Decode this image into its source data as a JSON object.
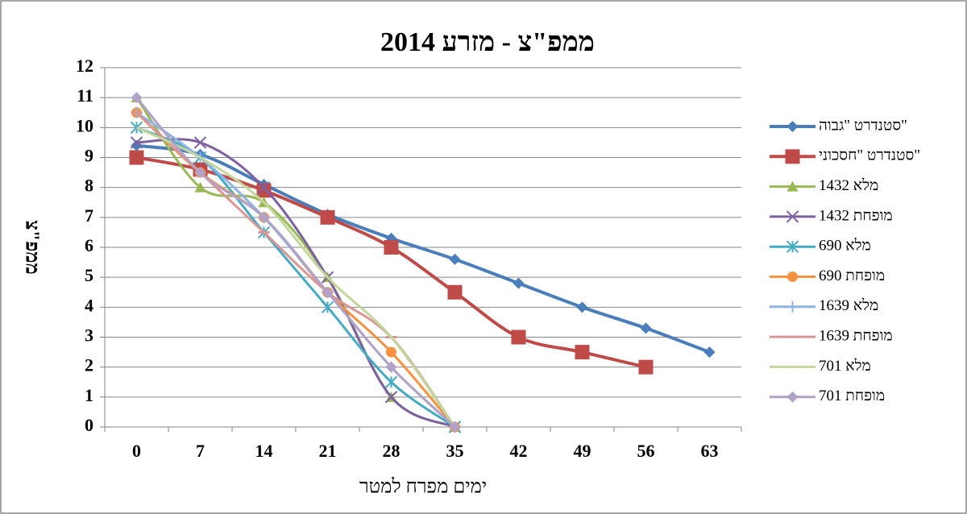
{
  "chart_data": {
    "type": "line",
    "smooth": true,
    "title": "ממפ\"צ - מזרע 2014",
    "x_label": "ימים מפרח למטר",
    "y_label": "ממפ\"צ",
    "categories": [
      "0",
      "7",
      "14",
      "21",
      "28",
      "35",
      "42",
      "49",
      "56",
      "63"
    ],
    "ylim": [
      0,
      12
    ],
    "yticks": [
      0,
      1,
      2,
      3,
      4,
      5,
      6,
      7,
      8,
      9,
      10,
      11,
      12
    ],
    "grid": true,
    "legend": "right",
    "series": [
      {
        "name": "סטנדרט \"גבוה\"",
        "color": "#4a7ebb",
        "marker": "diamond",
        "values": [
          9.4,
          9.1,
          8.1,
          7.1,
          6.3,
          5.6,
          4.8,
          4.0,
          3.3,
          2.5
        ]
      },
      {
        "name": "סטנדרט \"חסכוני\"",
        "color": "#be4b48",
        "marker": "square",
        "values": [
          9,
          8.6,
          7.9,
          7,
          6,
          4.5,
          3,
          2.5,
          2,
          null
        ]
      },
      {
        "name": "1432 מלא",
        "color": "#98b954",
        "marker": "triangle",
        "values": [
          11,
          8,
          7.5,
          5,
          1,
          0,
          null,
          null,
          null,
          null
        ]
      },
      {
        "name": "1432 מופחת",
        "color": "#7d60a0",
        "marker": "x",
        "values": [
          9.5,
          9.5,
          8,
          5,
          1,
          0,
          null,
          null,
          null,
          null
        ]
      },
      {
        "name": "690 מלא",
        "color": "#46aac5",
        "marker": "star",
        "values": [
          10,
          9,
          6.5,
          4,
          1.5,
          0,
          null,
          null,
          null,
          null
        ]
      },
      {
        "name": "690 מופחת",
        "color": "#f69240",
        "marker": "circle",
        "values": [
          10.5,
          8.5,
          7,
          4.5,
          2.5,
          0,
          null,
          null,
          null,
          null
        ]
      },
      {
        "name": "1639 מלא",
        "color": "#8eb4e3",
        "marker": "plus",
        "values": [
          10.5,
          9,
          7,
          4.5,
          2,
          0,
          null,
          null,
          null,
          null
        ]
      },
      {
        "name": "1639 מופחת",
        "color": "#d99694",
        "marker": "dash",
        "values": [
          10.5,
          8.5,
          6.5,
          4.5,
          3,
          0,
          null,
          null,
          null,
          null
        ]
      },
      {
        "name": "701 מלא",
        "color": "#c3d69b",
        "marker": "none",
        "values": [
          10,
          9,
          7.5,
          5,
          3,
          0,
          null,
          null,
          null,
          null
        ]
      },
      {
        "name": "701 מופחת",
        "color": "#b3a2c7",
        "marker": "diamond",
        "values": [
          11,
          8.5,
          7,
          4.5,
          2,
          0,
          null,
          null,
          null,
          null
        ]
      }
    ]
  }
}
